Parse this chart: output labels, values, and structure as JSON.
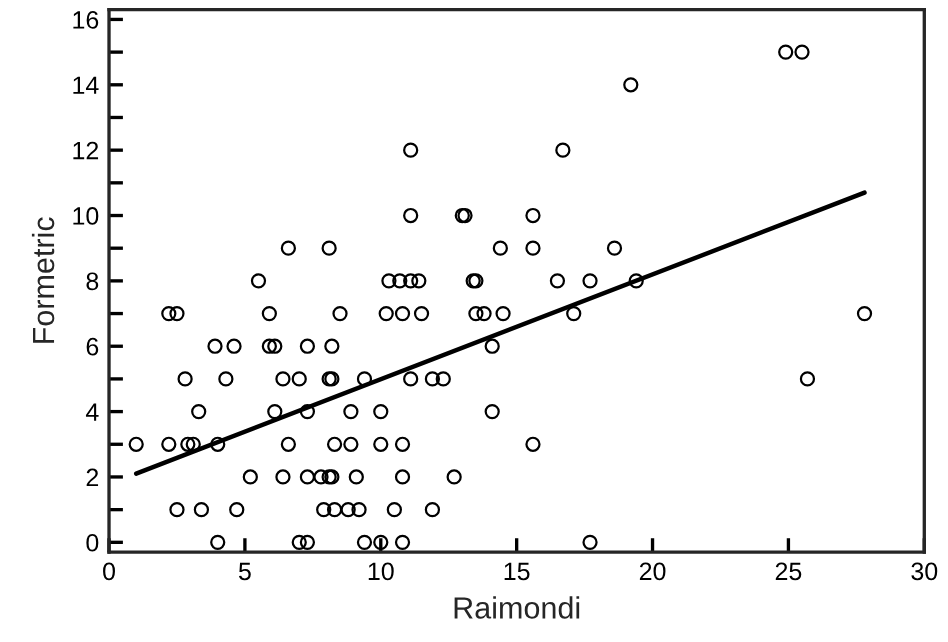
{
  "chart_data": {
    "type": "scatter",
    "xlabel": "Raimondi",
    "ylabel": "Formetric",
    "marker": "circle",
    "grid": false,
    "legend": false,
    "xlim": [
      0,
      30
    ],
    "ylim": [
      -0.3,
      16.3
    ],
    "xticks": [
      0,
      5,
      10,
      15,
      20,
      25,
      30
    ],
    "yticks": [
      0,
      {
        "value": 1,
        "label": null
      },
      2,
      {
        "value": 3,
        "label": null
      },
      4,
      {
        "value": 5,
        "label": null
      },
      6,
      {
        "value": 7,
        "label": null
      },
      8,
      {
        "value": 9,
        "label": null
      },
      10,
      {
        "value": 11,
        "label": null
      },
      12,
      {
        "value": 13,
        "label": null
      },
      14,
      {
        "value": 15,
        "label": null
      },
      16
    ],
    "series": [
      {
        "color": "#000000",
        "x": [
          5.5,
          10.3,
          10.7,
          11.1,
          11.4,
          13.4,
          13.5,
          16.5,
          17.7,
          19.4,
          2.2,
          2.5,
          5.9,
          8.5,
          10.2,
          10.8,
          11.5,
          13.5,
          13.8,
          14.5,
          17.1,
          27.8,
          3.9,
          4.6,
          5.9,
          6.1,
          7.3,
          8.2,
          14.1,
          2.8,
          4.3,
          6.4,
          7.0,
          8.1,
          8.2,
          9.4,
          11.1,
          11.9,
          12.3,
          25.7,
          3.3,
          6.1,
          7.3,
          8.9,
          10.0,
          14.1,
          1.0,
          2.2,
          2.9,
          3.1,
          4.0,
          6.6,
          8.3,
          8.9,
          10.0,
          10.8,
          15.6,
          5.2,
          6.4,
          7.3,
          7.8,
          8.1,
          8.2,
          9.1,
          10.8,
          12.7,
          2.5,
          3.4,
          4.7,
          7.9,
          8.3,
          8.8,
          9.2,
          10.5,
          11.9,
          4.0,
          7.0,
          7.3,
          9.4,
          10.0,
          10.8,
          17.7,
          6.6,
          8.1,
          14.4,
          15.6,
          18.6,
          11.1,
          13.0,
          13.1,
          15.6,
          11.1,
          16.7,
          19.2,
          24.9,
          25.5
        ],
        "values": [
          8,
          8,
          8,
          8,
          8,
          8,
          8,
          8,
          8,
          8,
          7,
          7,
          7,
          7,
          7,
          7,
          7,
          7,
          7,
          7,
          7,
          7,
          6,
          6,
          6,
          6,
          6,
          6,
          6,
          5,
          5,
          5,
          5,
          5,
          5,
          5,
          5,
          5,
          5,
          5,
          4,
          4,
          4,
          4,
          4,
          4,
          3,
          3,
          3,
          3,
          3,
          3,
          3,
          3,
          3,
          3,
          3,
          2,
          2,
          2,
          2,
          2,
          2,
          2,
          2,
          2,
          1,
          1,
          1,
          1,
          1,
          1,
          1,
          1,
          1,
          0,
          0,
          0,
          0,
          0,
          0,
          0,
          9,
          9,
          9,
          9,
          9,
          10,
          10,
          10,
          10,
          12,
          12,
          14,
          15,
          15
        ]
      },
      {
        "type": "line",
        "color": "#000000",
        "marker": "none",
        "line_style": "solid",
        "x": [
          1.0,
          27.8
        ],
        "values": [
          2.1,
          10.7
        ]
      }
    ]
  }
}
